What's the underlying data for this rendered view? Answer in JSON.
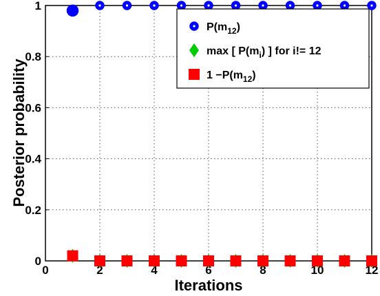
{
  "chart_data": {
    "type": "scatter",
    "xlabel": "Iterations",
    "ylabel": "Posterior probability",
    "xlim": [
      0,
      12
    ],
    "ylim": [
      0,
      1
    ],
    "xticks": [
      0,
      2,
      4,
      6,
      8,
      10,
      12
    ],
    "yticks": [
      0,
      0.2,
      0.4,
      0.6,
      0.8,
      1
    ],
    "xtick_labels": [
      "0",
      "2",
      "4",
      "6",
      "8",
      "10",
      "12"
    ],
    "ytick_labels": [
      "0",
      "0.2",
      "0.4",
      "0.6",
      "0.8",
      "1"
    ],
    "grid": true,
    "legend_position": "top-right",
    "x": [
      1,
      2,
      3,
      4,
      5,
      6,
      7,
      8,
      9,
      10,
      11,
      12
    ],
    "series": [
      {
        "name": "P(m12)",
        "legend_main": "P(m",
        "legend_sub": "12",
        "legend_tail": ")",
        "marker": "circle",
        "color": "#0000ff",
        "values": [
          0.98,
          1,
          1,
          1,
          1,
          1,
          1,
          1,
          1,
          1,
          1,
          1
        ]
      },
      {
        "name": "max [ P(mi) ] for i!= 12",
        "legend_main": "max [ P(m",
        "legend_sub": "i",
        "legend_tail": ") ] for i!= 12",
        "marker": "diamond",
        "color": "#00cc00",
        "values": [
          0.02,
          0,
          0,
          0,
          0,
          0,
          0,
          0,
          0,
          0,
          0,
          0
        ]
      },
      {
        "name": "1 -P(m12)",
        "legend_main": "1 −P(m",
        "legend_sub": "12",
        "legend_tail": ")",
        "marker": "square",
        "color": "#ff0000",
        "values": [
          0.02,
          0,
          0,
          0,
          0,
          0,
          0,
          0,
          0,
          0,
          0,
          0
        ]
      }
    ]
  }
}
